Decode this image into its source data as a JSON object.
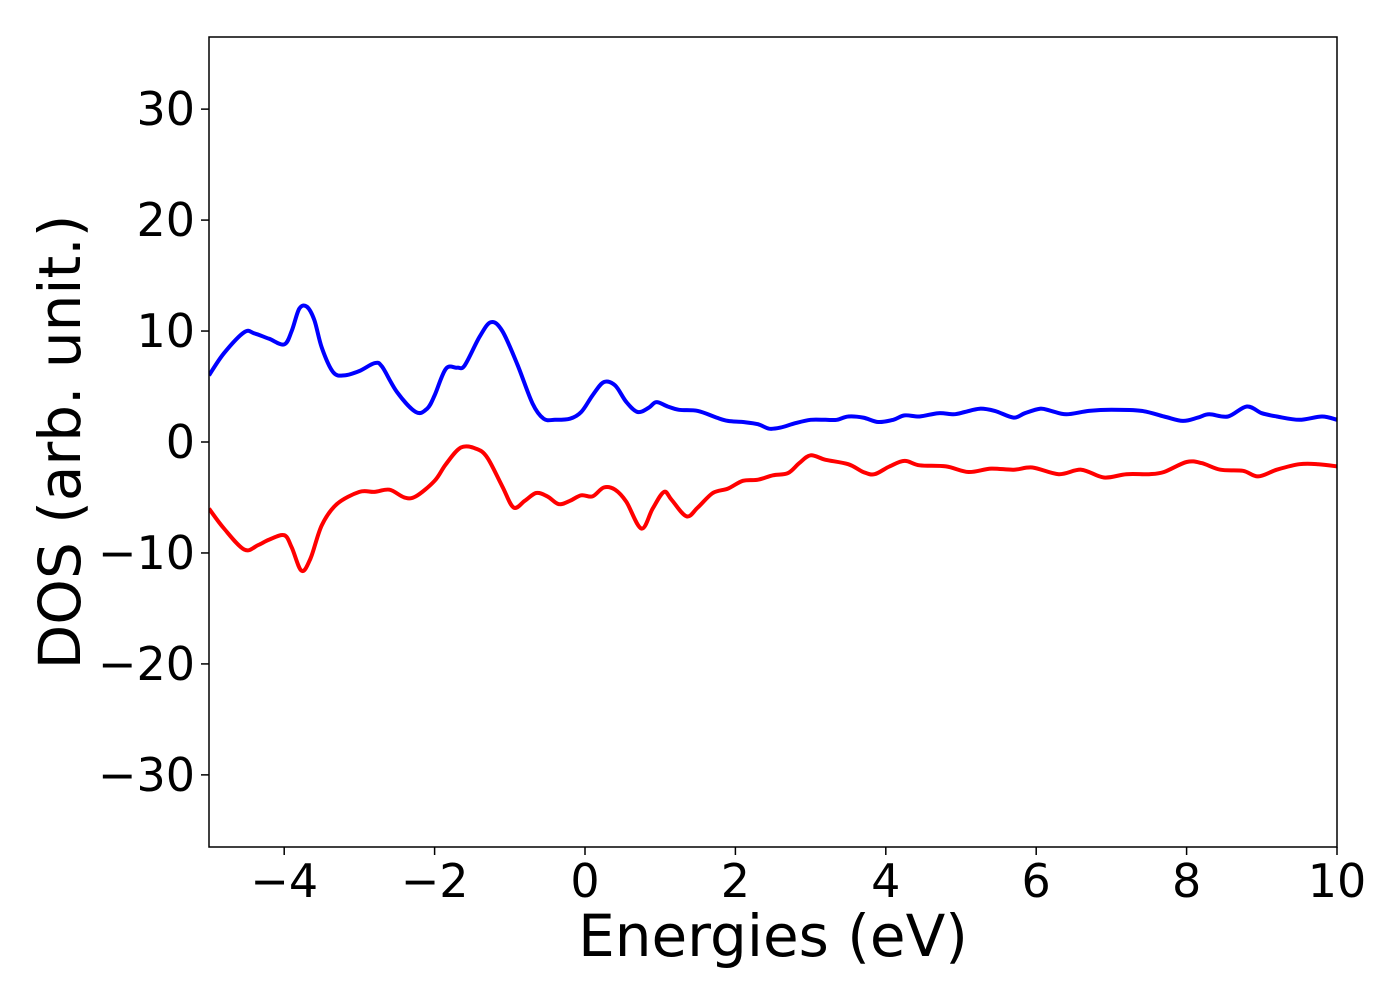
{
  "chart_data": {
    "type": "line",
    "title": "",
    "xlabel": "Energies (eV)",
    "ylabel": "DOS (arb. unit.)",
    "xlim": [
      -5,
      10
    ],
    "ylim": [
      -36.5,
      36.5
    ],
    "xticks": [
      -4,
      -2,
      0,
      2,
      4,
      6,
      8,
      10
    ],
    "xtick_labels": [
      "−4",
      "−2",
      "0",
      "2",
      "4",
      "6",
      "8",
      "10"
    ],
    "yticks": [
      30,
      20,
      10,
      0,
      -10,
      -20,
      -30
    ],
    "ytick_labels": [
      "30",
      "20",
      "10",
      "0",
      "−10",
      "−20",
      "−30"
    ],
    "grid": false,
    "legend": "none",
    "series": [
      {
        "color": "#0000ff",
        "points": [
          [
            -5.0,
            6.0
          ],
          [
            -4.8,
            8.0
          ],
          [
            -4.53,
            9.9
          ],
          [
            -4.4,
            9.8
          ],
          [
            -4.2,
            9.3
          ],
          [
            -4.0,
            8.8
          ],
          [
            -3.9,
            10.0
          ],
          [
            -3.8,
            12.0
          ],
          [
            -3.7,
            12.2
          ],
          [
            -3.6,
            11.0
          ],
          [
            -3.5,
            8.5
          ],
          [
            -3.35,
            6.3
          ],
          [
            -3.2,
            6.0
          ],
          [
            -3.0,
            6.4
          ],
          [
            -2.8,
            7.1
          ],
          [
            -2.7,
            6.8
          ],
          [
            -2.5,
            4.5
          ],
          [
            -2.25,
            2.7
          ],
          [
            -2.1,
            3.0
          ],
          [
            -2.0,
            4.2
          ],
          [
            -1.85,
            6.6
          ],
          [
            -1.7,
            6.7
          ],
          [
            -1.6,
            6.9
          ],
          [
            -1.4,
            9.5
          ],
          [
            -1.25,
            10.8
          ],
          [
            -1.1,
            10.0
          ],
          [
            -0.9,
            7.0
          ],
          [
            -0.7,
            3.5
          ],
          [
            -0.55,
            2.1
          ],
          [
            -0.4,
            2.0
          ],
          [
            -0.2,
            2.1
          ],
          [
            -0.05,
            2.7
          ],
          [
            0.1,
            4.2
          ],
          [
            0.25,
            5.4
          ],
          [
            0.4,
            5.1
          ],
          [
            0.55,
            3.6
          ],
          [
            0.7,
            2.7
          ],
          [
            0.85,
            3.1
          ],
          [
            0.95,
            3.6
          ],
          [
            1.1,
            3.2
          ],
          [
            1.25,
            2.9
          ],
          [
            1.5,
            2.8
          ],
          [
            1.75,
            2.2
          ],
          [
            1.9,
            1.9
          ],
          [
            2.1,
            1.8
          ],
          [
            2.3,
            1.6
          ],
          [
            2.45,
            1.2
          ],
          [
            2.6,
            1.3
          ],
          [
            2.8,
            1.7
          ],
          [
            3.0,
            2.0
          ],
          [
            3.2,
            2.0
          ],
          [
            3.35,
            2.0
          ],
          [
            3.5,
            2.3
          ],
          [
            3.7,
            2.2
          ],
          [
            3.9,
            1.8
          ],
          [
            4.1,
            2.0
          ],
          [
            4.25,
            2.4
          ],
          [
            4.45,
            2.3
          ],
          [
            4.7,
            2.6
          ],
          [
            4.9,
            2.5
          ],
          [
            5.05,
            2.7
          ],
          [
            5.25,
            3.0
          ],
          [
            5.45,
            2.8
          ],
          [
            5.7,
            2.2
          ],
          [
            5.85,
            2.6
          ],
          [
            6.05,
            3.0
          ],
          [
            6.2,
            2.8
          ],
          [
            6.4,
            2.5
          ],
          [
            6.7,
            2.8
          ],
          [
            7.0,
            2.9
          ],
          [
            7.4,
            2.8
          ],
          [
            7.7,
            2.3
          ],
          [
            7.95,
            1.9
          ],
          [
            8.15,
            2.2
          ],
          [
            8.3,
            2.5
          ],
          [
            8.55,
            2.3
          ],
          [
            8.8,
            3.2
          ],
          [
            9.0,
            2.6
          ],
          [
            9.2,
            2.3
          ],
          [
            9.5,
            2.0
          ],
          [
            9.8,
            2.3
          ],
          [
            10.0,
            2.0
          ]
        ]
      },
      {
        "color": "#ff0000",
        "points": [
          [
            -5.0,
            -6.0
          ],
          [
            -4.8,
            -7.8
          ],
          [
            -4.53,
            -9.7
          ],
          [
            -4.35,
            -9.3
          ],
          [
            -4.2,
            -8.8
          ],
          [
            -4.0,
            -8.4
          ],
          [
            -3.9,
            -9.5
          ],
          [
            -3.77,
            -11.6
          ],
          [
            -3.65,
            -10.5
          ],
          [
            -3.5,
            -7.5
          ],
          [
            -3.3,
            -5.6
          ],
          [
            -3.0,
            -4.5
          ],
          [
            -2.8,
            -4.5
          ],
          [
            -2.6,
            -4.3
          ],
          [
            -2.4,
            -5.0
          ],
          [
            -2.25,
            -4.9
          ],
          [
            -2.0,
            -3.5
          ],
          [
            -1.85,
            -2.0
          ],
          [
            -1.65,
            -0.5
          ],
          [
            -1.45,
            -0.6
          ],
          [
            -1.3,
            -1.4
          ],
          [
            -1.1,
            -4.0
          ],
          [
            -0.95,
            -5.9
          ],
          [
            -0.8,
            -5.3
          ],
          [
            -0.65,
            -4.6
          ],
          [
            -0.5,
            -4.9
          ],
          [
            -0.35,
            -5.6
          ],
          [
            -0.2,
            -5.3
          ],
          [
            -0.05,
            -4.8
          ],
          [
            0.1,
            -4.9
          ],
          [
            0.25,
            -4.1
          ],
          [
            0.4,
            -4.3
          ],
          [
            0.55,
            -5.4
          ],
          [
            0.75,
            -7.8
          ],
          [
            0.9,
            -6.0
          ],
          [
            1.05,
            -4.5
          ],
          [
            1.15,
            -5.2
          ],
          [
            1.35,
            -6.7
          ],
          [
            1.5,
            -5.9
          ],
          [
            1.7,
            -4.6
          ],
          [
            1.9,
            -4.2
          ],
          [
            2.1,
            -3.5
          ],
          [
            2.3,
            -3.4
          ],
          [
            2.5,
            -3.0
          ],
          [
            2.7,
            -2.8
          ],
          [
            2.85,
            -1.9
          ],
          [
            3.0,
            -1.2
          ],
          [
            3.2,
            -1.6
          ],
          [
            3.5,
            -2.0
          ],
          [
            3.7,
            -2.7
          ],
          [
            3.85,
            -2.9
          ],
          [
            4.05,
            -2.2
          ],
          [
            4.25,
            -1.7
          ],
          [
            4.45,
            -2.1
          ],
          [
            4.8,
            -2.2
          ],
          [
            5.1,
            -2.7
          ],
          [
            5.4,
            -2.4
          ],
          [
            5.7,
            -2.5
          ],
          [
            5.95,
            -2.3
          ],
          [
            6.3,
            -2.9
          ],
          [
            6.6,
            -2.5
          ],
          [
            6.9,
            -3.2
          ],
          [
            7.2,
            -2.9
          ],
          [
            7.5,
            -2.9
          ],
          [
            7.7,
            -2.7
          ],
          [
            8.0,
            -1.8
          ],
          [
            8.2,
            -1.9
          ],
          [
            8.45,
            -2.5
          ],
          [
            8.75,
            -2.6
          ],
          [
            8.95,
            -3.1
          ],
          [
            9.2,
            -2.5
          ],
          [
            9.5,
            -2.0
          ],
          [
            9.75,
            -2.0
          ],
          [
            10.0,
            -2.2
          ]
        ]
      }
    ]
  }
}
